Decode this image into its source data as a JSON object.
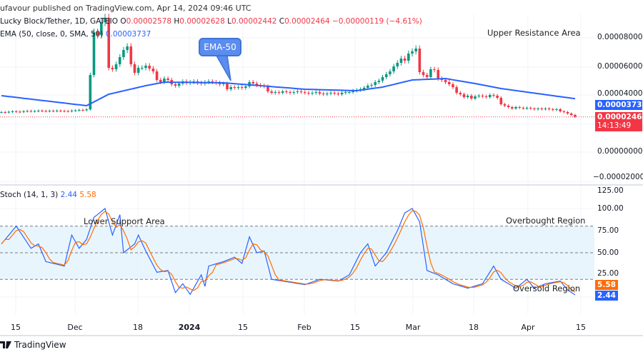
{
  "header": {
    "publisher": "ufavour published on TradingView.com, Apr 14, 2024 09:46 UTC",
    "symbol": "Lucky Block/Tether, 1D, GATEIO",
    "o_label": "O",
    "o": "0.00002578",
    "h_label": "H",
    "h": "0.00002628",
    "l_label": "L",
    "l": "0.00002442",
    "c_label": "C",
    "c": "0.00002464",
    "change": "−0.00000119 (−4.61%)",
    "ema_label": "EMA (50, close, 0, SMA, 50)",
    "ema_value": "0.00003737",
    "stoch_label": "Stoch (14, 1, 3)",
    "stoch_k": "2.44",
    "stoch_d": "5.58"
  },
  "annotations": {
    "upper": "Upper Resistance Area",
    "ema_callout": "EMA-50",
    "lower": "Lower Support Area",
    "overbought": "Overbought Region",
    "oversold": "Oversold Region"
  },
  "price_axis": {
    "ticks": [
      "0.00008000",
      "0.00006000",
      "0.00004000",
      "0.00000000",
      "−0.00002000"
    ],
    "ema_tag": "0.00003737",
    "price_tag": "0.00002464",
    "countdown": "14:13:49"
  },
  "stoch_axis": {
    "ticks": [
      "125.00",
      "100.00",
      "75.00",
      "50.00",
      "25.00"
    ],
    "d_tag": "5.58",
    "k_tag": "2.44"
  },
  "x_axis": {
    "ticks": [
      "15",
      "Dec",
      "18",
      "2024",
      "15",
      "Feb",
      "15",
      "Mar",
      "18",
      "Apr",
      "15"
    ]
  },
  "footer": {
    "brand": "TradingView"
  },
  "colors": {
    "up": "#089981",
    "down": "#f23645",
    "ema": "#2962ff",
    "stoch_k": "#2962ff",
    "stoch_d": "#ff6d00",
    "band": "#e3f2fd"
  },
  "chart_data": {
    "type": "candlestick",
    "symbol": "Lucky Block/Tether",
    "interval": "1D",
    "first_date": "2023-11-11",
    "last_date": "2024-04-14",
    "ylim": [
      -2e-05,
      0.0001
    ],
    "closes": [
      2.8e-05,
      2.78e-05,
      2.82e-05,
      2.85e-05,
      2.83e-05,
      2.81e-05,
      2.86e-05,
      2.88e-05,
      2.85e-05,
      2.87e-05,
      2.9e-05,
      2.88e-05,
      2.86e-05,
      2.89e-05,
      2.87e-05,
      2.9e-05,
      2.88e-05,
      2.87e-05,
      2.86e-05,
      2.9e-05,
      2.92e-05,
      2.95e-05,
      2.93e-05,
      2.99e-05,
      5.4e-05,
      8.4e-05,
      8.2e-05,
      9.1e-05,
      9.4e-05,
      5.9e-05,
      5.8e-05,
      6.15e-05,
      6.65e-05,
      7.15e-05,
      7.4e-05,
      6.15e-05,
      5.55e-05,
      5.9e-05,
      5.9e-05,
      6.05e-05,
      5.85e-05,
      5.65e-05,
      5.05e-05,
      4.9e-05,
      5.15e-05,
      5.05e-05,
      4.75e-05,
      4.65e-05,
      4.8e-05,
      4.95e-05,
      4.85e-05,
      4.9e-05,
      4.95e-05,
      4.85e-05,
      4.8e-05,
      4.9e-05,
      4.95e-05,
      4.9e-05,
      4.85e-05,
      4.75e-05,
      4.8e-05,
      4.4e-05,
      4.55e-05,
      4.5e-05,
      4.55e-05,
      4.5e-05,
      4.6e-05,
      4.9e-05,
      4.8e-05,
      4.7e-05,
      4.65e-05,
      4.6e-05,
      4.25e-05,
      4.15e-05,
      4.2e-05,
      4.15e-05,
      4.25e-05,
      4.2e-05,
      4.15e-05,
      4.2e-05,
      4.25e-05,
      4.2e-05,
      4.15e-05,
      4.1e-05,
      4.15e-05,
      4.2e-05,
      4.1e-05,
      4.05e-05,
      4.1e-05,
      4.15e-05,
      4.1e-05,
      4.05e-05,
      4.15e-05,
      4.2e-05,
      4.2e-05,
      4.3e-05,
      4.35e-05,
      4.4e-05,
      4.5e-05,
      4.65e-05,
      4.7e-05,
      4.9e-05,
      5e-05,
      5.25e-05,
      5.45e-05,
      5.65e-05,
      6e-05,
      6.25e-05,
      6.55e-05,
      6.4e-05,
      6.9e-05,
      7.05e-05,
      7.25e-05,
      5.6e-05,
      5.4e-05,
      5.25e-05,
      5.8e-05,
      5.75e-05,
      5.15e-05,
      5.05e-05,
      4.9e-05,
      4.75e-05,
      4.55e-05,
      4.15e-05,
      4.05e-05,
      3.85e-05,
      3.95e-05,
      3.75e-05,
      3.9e-05,
      3.95e-05,
      3.9e-05,
      3.85e-05,
      4e-05,
      3.95e-05,
      3.8e-05,
      3.35e-05,
      3.25e-05,
      3.15e-05,
      3.05e-05,
      3.15e-05,
      3.1e-05,
      3.05e-05,
      3.1e-05,
      3.05e-05,
      3e-05,
      3.05e-05,
      3e-05,
      3.05e-05,
      3e-05,
      2.95e-05,
      3e-05,
      2.85e-05,
      2.8e-05,
      2.7e-05,
      2.6e-05,
      2.464e-05
    ],
    "ema50": [
      {
        "date": "2023-11-11",
        "value": 3.95e-05
      },
      {
        "date": "2023-12-04",
        "value": 3.25e-05
      },
      {
        "date": "2023-12-10",
        "value": 4.05e-05
      },
      {
        "date": "2023-12-20",
        "value": 4.65e-05
      },
      {
        "date": "2023-12-25",
        "value": 4.9e-05
      },
      {
        "date": "2024-01-10",
        "value": 4.85e-05
      },
      {
        "date": "2024-01-20",
        "value": 4.65e-05
      },
      {
        "date": "2024-02-01",
        "value": 4.4e-05
      },
      {
        "date": "2024-02-15",
        "value": 4.3e-05
      },
      {
        "date": "2024-02-22",
        "value": 4.55e-05
      },
      {
        "date": "2024-03-01",
        "value": 5.05e-05
      },
      {
        "date": "2024-03-10",
        "value": 5.15e-05
      },
      {
        "date": "2024-03-18",
        "value": 4.8e-05
      },
      {
        "date": "2024-03-25",
        "value": 4.45e-05
      },
      {
        "date": "2024-04-14",
        "value": 3.737e-05
      }
    ],
    "stoch": {
      "ylim": [
        0,
        125
      ],
      "upper_band": 80,
      "middle": 50,
      "lower_band": 20,
      "k": [
        {
          "date": "2023-11-11",
          "value": 60
        },
        {
          "date": "2023-11-15",
          "value": 80
        },
        {
          "date": "2023-11-19",
          "value": 55
        },
        {
          "date": "2023-11-21",
          "value": 60
        },
        {
          "date": "2023-11-23",
          "value": 40
        },
        {
          "date": "2023-11-28",
          "value": 35
        },
        {
          "date": "2023-11-30",
          "value": 70
        },
        {
          "date": "2023-12-02",
          "value": 55
        },
        {
          "date": "2023-12-04",
          "value": 65
        },
        {
          "date": "2023-12-06",
          "value": 90
        },
        {
          "date": "2023-12-09",
          "value": 100
        },
        {
          "date": "2023-12-11",
          "value": 70
        },
        {
          "date": "2023-12-13",
          "value": 93
        },
        {
          "date": "2023-12-14",
          "value": 50
        },
        {
          "date": "2023-12-17",
          "value": 60
        },
        {
          "date": "2023-12-18",
          "value": 70
        },
        {
          "date": "2023-12-20",
          "value": 52
        },
        {
          "date": "2023-12-23",
          "value": 28
        },
        {
          "date": "2023-12-26",
          "value": 30
        },
        {
          "date": "2023-12-28",
          "value": 5
        },
        {
          "date": "2023-12-30",
          "value": 15
        },
        {
          "date": "2024-01-01",
          "value": 3
        },
        {
          "date": "2024-01-04",
          "value": 25
        },
        {
          "date": "2024-01-05",
          "value": 12
        },
        {
          "date": "2024-01-06",
          "value": 35
        },
        {
          "date": "2024-01-10",
          "value": 40
        },
        {
          "date": "2024-01-13",
          "value": 45
        },
        {
          "date": "2024-01-15",
          "value": 38
        },
        {
          "date": "2024-01-17",
          "value": 68
        },
        {
          "date": "2024-01-19",
          "value": 50
        },
        {
          "date": "2024-01-21",
          "value": 52
        },
        {
          "date": "2024-01-23",
          "value": 20
        },
        {
          "date": "2024-01-26",
          "value": 18
        },
        {
          "date": "2024-02-01",
          "value": 14
        },
        {
          "date": "2024-02-05",
          "value": 20
        },
        {
          "date": "2024-02-10",
          "value": 18
        },
        {
          "date": "2024-02-13",
          "value": 25
        },
        {
          "date": "2024-02-16",
          "value": 50
        },
        {
          "date": "2024-02-18",
          "value": 60
        },
        {
          "date": "2024-02-20",
          "value": 35
        },
        {
          "date": "2024-02-23",
          "value": 50
        },
        {
          "date": "2024-02-26",
          "value": 75
        },
        {
          "date": "2024-02-28",
          "value": 95
        },
        {
          "date": "2024-03-01",
          "value": 100
        },
        {
          "date": "2024-03-03",
          "value": 85
        },
        {
          "date": "2024-03-05",
          "value": 30
        },
        {
          "date": "2024-03-08",
          "value": 25
        },
        {
          "date": "2024-03-12",
          "value": 15
        },
        {
          "date": "2024-03-16",
          "value": 10
        },
        {
          "date": "2024-03-20",
          "value": 15
        },
        {
          "date": "2024-03-23",
          "value": 35
        },
        {
          "date": "2024-03-25",
          "value": 20
        },
        {
          "date": "2024-03-29",
          "value": 10
        },
        {
          "date": "2024-04-01",
          "value": 20
        },
        {
          "date": "2024-04-03",
          "value": 10
        },
        {
          "date": "2024-04-06",
          "value": 15
        },
        {
          "date": "2024-04-10",
          "value": 18
        },
        {
          "date": "2024-04-12",
          "value": 8
        },
        {
          "date": "2024-04-14",
          "value": 2.44
        }
      ],
      "d_last": 5.58
    }
  }
}
